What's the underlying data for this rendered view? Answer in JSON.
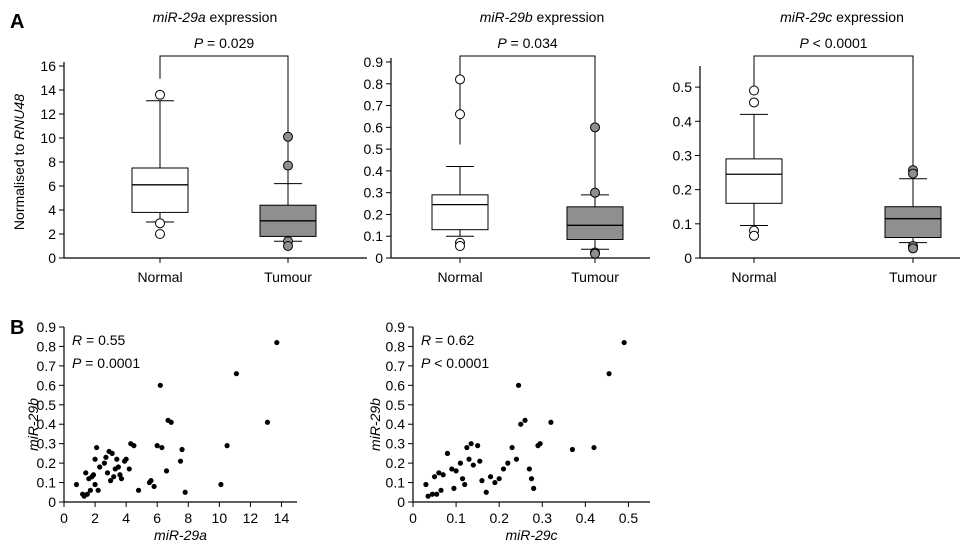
{
  "panel_labels": {
    "a": "A",
    "b": "B"
  },
  "ylabel_a": {
    "prefix": "Normalised to ",
    "gene": "RNU48"
  },
  "colors": {
    "normal_fill": "#ffffff",
    "tumour_fill": "#8f8f8f",
    "axis": "#000000",
    "points": "#000000"
  },
  "chart_data": [
    {
      "type": "box",
      "title_gene": "miR-29a",
      "title_suffix": " expression",
      "pvalue_label": "P",
      "pvalue_text": " = 0.029",
      "categories": [
        "Normal",
        "Tumour"
      ],
      "ylim": [
        0,
        16
      ],
      "yticks": [
        0,
        2,
        4,
        6,
        8,
        10,
        12,
        14,
        16
      ],
      "boxes": [
        {
          "category": "Normal",
          "whisker_low": 3.0,
          "q1": 3.8,
          "median": 6.1,
          "q3": 7.5,
          "whisker_high": 13.1,
          "outliers": [
            13.6,
            2.9,
            2.0
          ]
        },
        {
          "category": "Tumour",
          "whisker_low": 1.4,
          "q1": 1.8,
          "median": 3.1,
          "q3": 4.4,
          "whisker_high": 6.2,
          "outliers": [
            10.1,
            7.7,
            1.4,
            1.0
          ]
        }
      ]
    },
    {
      "type": "box",
      "title_gene": "miR-29b",
      "title_suffix": " expression",
      "pvalue_label": "P",
      "pvalue_text": " = 0.034",
      "categories": [
        "Normal",
        "Tumour"
      ],
      "ylim": [
        0,
        0.9
      ],
      "yticks": [
        0,
        0.1,
        0.2,
        0.3,
        0.4,
        0.5,
        0.6,
        0.7,
        0.8,
        0.9
      ],
      "boxes": [
        {
          "category": "Normal",
          "whisker_low": 0.1,
          "q1": 0.13,
          "median": 0.245,
          "q3": 0.29,
          "whisker_high": 0.42,
          "outliers": [
            0.82,
            0.66,
            0.07,
            0.055
          ]
        },
        {
          "category": "Tumour",
          "whisker_low": 0.04,
          "q1": 0.085,
          "median": 0.15,
          "q3": 0.235,
          "whisker_high": 0.29,
          "outliers": [
            0.6,
            0.3,
            0.025,
            0.02
          ]
        }
      ]
    },
    {
      "type": "box",
      "title_gene": "miR-29c",
      "title_suffix": " expression",
      "pvalue_label": "P",
      "pvalue_text": " < 0.0001",
      "categories": [
        "Normal",
        "Tumour"
      ],
      "ylim": [
        0,
        0.55
      ],
      "yticks": [
        0,
        0.1,
        0.2,
        0.3,
        0.4,
        0.5
      ],
      "boxes": [
        {
          "category": "Normal",
          "whisker_low": 0.095,
          "q1": 0.16,
          "median": 0.245,
          "q3": 0.29,
          "whisker_high": 0.42,
          "outliers": [
            0.49,
            0.455,
            0.08,
            0.065
          ]
        },
        {
          "category": "Tumour",
          "whisker_low": 0.045,
          "q1": 0.06,
          "median": 0.115,
          "q3": 0.15,
          "whisker_high": 0.232,
          "outliers": [
            0.257,
            0.247,
            0.035,
            0.028
          ]
        }
      ]
    },
    {
      "type": "scatter",
      "xlabel": "miR-29a",
      "ylabel": "miR-29b",
      "xlim": [
        0,
        15
      ],
      "ylim": [
        0,
        0.9
      ],
      "xticks": [
        0,
        2,
        4,
        6,
        8,
        10,
        12,
        14
      ],
      "yticks": [
        0,
        0.1,
        0.2,
        0.3,
        0.4,
        0.5,
        0.6,
        0.7,
        0.8,
        0.9
      ],
      "stats": [
        {
          "label": "R",
          "text": " = 0.55"
        },
        {
          "label": "P",
          "text": " = 0.0001"
        }
      ],
      "points": [
        [
          0.8,
          0.09
        ],
        [
          1.2,
          0.04
        ],
        [
          1.3,
          0.03
        ],
        [
          1.4,
          0.15
        ],
        [
          1.5,
          0.04
        ],
        [
          1.6,
          0.12
        ],
        [
          1.7,
          0.06
        ],
        [
          1.8,
          0.13
        ],
        [
          1.9,
          0.14
        ],
        [
          2.0,
          0.22
        ],
        [
          2.0,
          0.09
        ],
        [
          2.1,
          0.28
        ],
        [
          2.2,
          0.06
        ],
        [
          2.3,
          0.18
        ],
        [
          2.6,
          0.2
        ],
        [
          2.7,
          0.23
        ],
        [
          2.8,
          0.15
        ],
        [
          2.9,
          0.26
        ],
        [
          3.0,
          0.11
        ],
        [
          3.1,
          0.25
        ],
        [
          3.2,
          0.13
        ],
        [
          3.3,
          0.17
        ],
        [
          3.4,
          0.22
        ],
        [
          3.5,
          0.18
        ],
        [
          3.6,
          0.14
        ],
        [
          3.7,
          0.12
        ],
        [
          3.9,
          0.21
        ],
        [
          4.0,
          0.22
        ],
        [
          4.2,
          0.17
        ],
        [
          4.3,
          0.3
        ],
        [
          4.5,
          0.29
        ],
        [
          4.8,
          0.06
        ],
        [
          5.5,
          0.1
        ],
        [
          5.6,
          0.11
        ],
        [
          5.8,
          0.08
        ],
        [
          6.0,
          0.29
        ],
        [
          6.2,
          0.6
        ],
        [
          6.3,
          0.28
        ],
        [
          6.6,
          0.16
        ],
        [
          6.7,
          0.42
        ],
        [
          6.9,
          0.41
        ],
        [
          7.5,
          0.21
        ],
        [
          7.6,
          0.27
        ],
        [
          7.8,
          0.05
        ],
        [
          10.1,
          0.09
        ],
        [
          10.5,
          0.29
        ],
        [
          11.1,
          0.66
        ],
        [
          13.1,
          0.41
        ],
        [
          13.7,
          0.82
        ]
      ]
    },
    {
      "type": "scatter",
      "xlabel": "miR-29c",
      "ylabel": "miR-29b",
      "xlim": [
        0,
        0.55
      ],
      "ylim": [
        0,
        0.9
      ],
      "xticks": [
        0,
        0.1,
        0.2,
        0.3,
        0.4,
        0.5
      ],
      "yticks": [
        0,
        0.1,
        0.2,
        0.3,
        0.4,
        0.5,
        0.6,
        0.7,
        0.8,
        0.9
      ],
      "stats": [
        {
          "label": "R",
          "text": " = 0.62"
        },
        {
          "label": "P",
          "text": " < 0.0001"
        }
      ],
      "points": [
        [
          0.03,
          0.09
        ],
        [
          0.035,
          0.03
        ],
        [
          0.045,
          0.04
        ],
        [
          0.05,
          0.13
        ],
        [
          0.055,
          0.04
        ],
        [
          0.06,
          0.15
        ],
        [
          0.065,
          0.06
        ],
        [
          0.07,
          0.14
        ],
        [
          0.08,
          0.25
        ],
        [
          0.09,
          0.17
        ],
        [
          0.095,
          0.07
        ],
        [
          0.1,
          0.16
        ],
        [
          0.11,
          0.2
        ],
        [
          0.115,
          0.12
        ],
        [
          0.12,
          0.09
        ],
        [
          0.125,
          0.28
        ],
        [
          0.13,
          0.22
        ],
        [
          0.135,
          0.3
        ],
        [
          0.14,
          0.19
        ],
        [
          0.15,
          0.29
        ],
        [
          0.155,
          0.21
        ],
        [
          0.16,
          0.11
        ],
        [
          0.17,
          0.05
        ],
        [
          0.18,
          0.13
        ],
        [
          0.19,
          0.1
        ],
        [
          0.2,
          0.12
        ],
        [
          0.21,
          0.17
        ],
        [
          0.22,
          0.2
        ],
        [
          0.23,
          0.28
        ],
        [
          0.24,
          0.22
        ],
        [
          0.245,
          0.6
        ],
        [
          0.25,
          0.4
        ],
        [
          0.26,
          0.42
        ],
        [
          0.27,
          0.17
        ],
        [
          0.275,
          0.12
        ],
        [
          0.28,
          0.07
        ],
        [
          0.29,
          0.29
        ],
        [
          0.295,
          0.3
        ],
        [
          0.32,
          0.41
        ],
        [
          0.37,
          0.27
        ],
        [
          0.42,
          0.28
        ],
        [
          0.455,
          0.66
        ],
        [
          0.49,
          0.82
        ]
      ]
    }
  ]
}
